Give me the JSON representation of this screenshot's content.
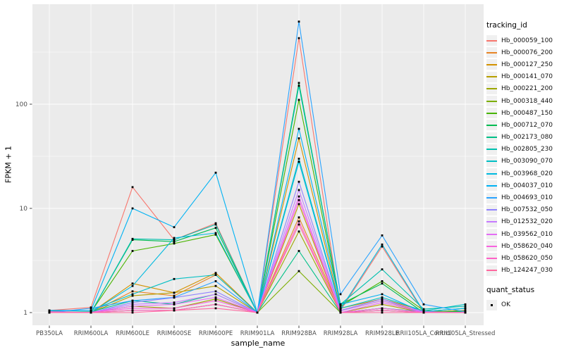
{
  "chart_data": {
    "type": "line",
    "title": "",
    "xlabel": "sample_name",
    "ylabel": "FPKM + 1",
    "y_scale": "log10",
    "y_ticks": [
      1,
      10,
      100
    ],
    "ylim": [
      0.78,
      900
    ],
    "grid": true,
    "legend_position": "right",
    "panel_bg": "#EBEBEB",
    "grid_color": "#FFFFFF",
    "marker": {
      "shape": "square",
      "color": "#000000",
      "meaning": "quant_status OK"
    },
    "categories": [
      "PB350LA",
      "RRIM600LA",
      "RRIM600LE",
      "RRIM600SE",
      "RRIM600PE",
      "RRIM901LA",
      "RRIM928BA",
      "RRIM928LA",
      "RRIM928LE",
      "RRII105LA_Control",
      "RRII105LA_Stressed"
    ],
    "series": [
      {
        "name": "Hb_000059_100",
        "color": "#F8766D",
        "values": [
          1.05,
          1.12,
          16,
          5,
          7.2,
          1,
          430,
          1.05,
          4.3,
          1,
          1
        ]
      },
      {
        "name": "Hb_000076_200",
        "color": "#E88526",
        "values": [
          1,
          1,
          1.6,
          1.45,
          2.3,
          1,
          8.2,
          1.04,
          1.3,
          1,
          1
        ]
      },
      {
        "name": "Hb_000127_250",
        "color": "#D39200",
        "values": [
          1.01,
          1,
          1.9,
          1.55,
          2.4,
          1,
          47,
          1.1,
          1.35,
          1.04,
          1
        ]
      },
      {
        "name": "Hb_000141_070",
        "color": "#B79F00",
        "values": [
          1,
          1,
          1.45,
          1.55,
          1.8,
          1,
          11,
          1,
          1.2,
          1,
          1.02
        ]
      },
      {
        "name": "Hb_000221_200",
        "color": "#9DA700",
        "values": [
          1.02,
          1,
          1.15,
          1.1,
          1.35,
          1,
          6,
          1,
          1.1,
          1.01,
          1.05
        ]
      },
      {
        "name": "Hb_000318_440",
        "color": "#7CAE00",
        "values": [
          1,
          1,
          1.05,
          1.05,
          1.2,
          1,
          2.5,
          1,
          1.05,
          1,
          1
        ]
      },
      {
        "name": "Hb_000487_150",
        "color": "#49B500",
        "values": [
          1,
          1.01,
          3.9,
          4.6,
          5.6,
          1,
          110,
          1.15,
          2,
          1.05,
          1
        ]
      },
      {
        "name": "Hb_000712_070",
        "color": "#00BC51",
        "values": [
          1.01,
          1,
          5,
          4.8,
          6.5,
          1,
          160,
          1.2,
          1.9,
          1,
          1.03
        ]
      },
      {
        "name": "Hb_002173_080",
        "color": "#00C087",
        "values": [
          1,
          1.02,
          1.3,
          1.2,
          1.5,
          1,
          3.9,
          1,
          1.1,
          1.02,
          1.1
        ]
      },
      {
        "name": "Hb_002805_230",
        "color": "#00C0AF",
        "values": [
          1.02,
          1,
          5.1,
          5,
          7,
          1,
          150,
          1.2,
          2.6,
          1.08,
          1.15
        ]
      },
      {
        "name": "Hb_003090_070",
        "color": "#00BFC4",
        "values": [
          1.03,
          1.05,
          1.5,
          2.1,
          2.3,
          1,
          30,
          1.1,
          1.4,
          1.04,
          1.2
        ]
      },
      {
        "name": "Hb_003968_020",
        "color": "#00BAE0",
        "values": [
          1,
          1,
          1.8,
          5.2,
          5.8,
          1,
          28,
          1.08,
          4.5,
          1.02,
          1.1
        ]
      },
      {
        "name": "Hb_004037_010",
        "color": "#00B2F3",
        "values": [
          1.05,
          1.05,
          10,
          6.6,
          22,
          1,
          58,
          1.2,
          1.5,
          1,
          1
        ]
      },
      {
        "name": "Hb_004693_010",
        "color": "#29A3FF",
        "values": [
          1,
          1.1,
          1.3,
          1.4,
          2,
          1,
          620,
          1.5,
          5.5,
          1.2,
          1.02
        ]
      },
      {
        "name": "Hb_007532_050",
        "color": "#9183FF",
        "values": [
          1,
          1,
          1.25,
          1.39,
          1.6,
          1,
          18,
          1.05,
          1.35,
          1,
          1
        ]
      },
      {
        "name": "Hb_012532_020",
        "color": "#C67BFF",
        "values": [
          1.01,
          1,
          1.2,
          1.25,
          1.5,
          1,
          15,
          1.04,
          1.3,
          1.02,
          1
        ]
      },
      {
        "name": "Hb_039562_010",
        "color": "#E46DF5",
        "values": [
          1,
          1,
          1.15,
          1.2,
          1.4,
          1,
          13,
          1,
          1.25,
          1,
          1.01
        ]
      },
      {
        "name": "Hb_058620_040",
        "color": "#F863DF",
        "values": [
          1,
          1.01,
          1.1,
          1.1,
          1.3,
          1,
          12,
          1,
          1.1,
          1.01,
          1
        ]
      },
      {
        "name": "Hb_058620_050",
        "color": "#FF61C7",
        "values": [
          1.02,
          1,
          1.05,
          1.05,
          1.2,
          1,
          7.5,
          1,
          1.05,
          1,
          1
        ]
      },
      {
        "name": "Hb_124247_030",
        "color": "#FF689E",
        "values": [
          1,
          1,
          1,
          1.05,
          1.1,
          1,
          7,
          1,
          1,
          1,
          1
        ]
      }
    ]
  },
  "legend": {
    "tracking_title": "tracking_id",
    "quant_title": "quant_status",
    "quant_ok_label": "OK"
  }
}
